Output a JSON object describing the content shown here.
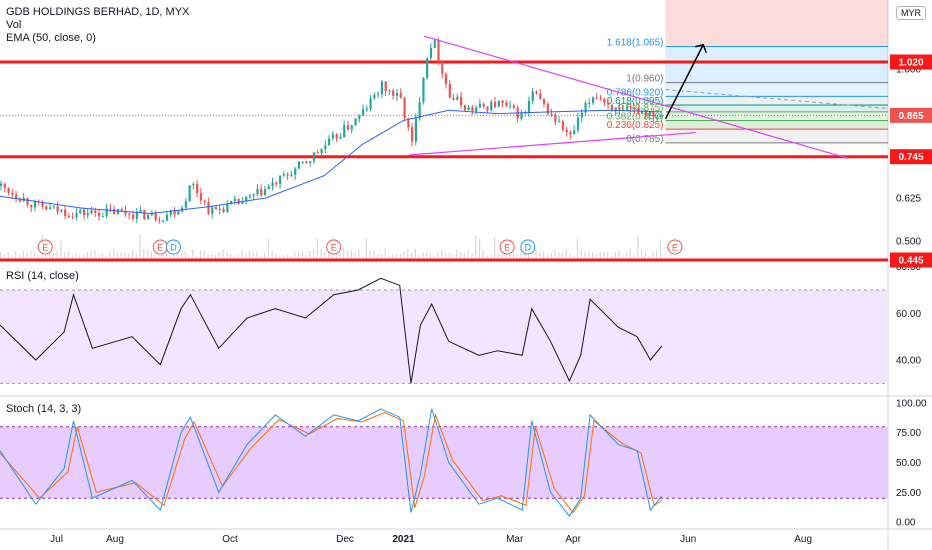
{
  "header": {
    "symbol": "GDB HOLDINGS BERHAD, 1D, MYX",
    "vol": "Vol",
    "ema": "EMA (50, close, 0)",
    "currency": "MYR"
  },
  "panes": {
    "rsi_label": "RSI (14, close)",
    "stoch_label": "Stoch (14, 3, 3)"
  },
  "colors": {
    "up": "#26a69a",
    "down": "#ef5350",
    "ema": "#2962ff",
    "level": "#f7191a",
    "triangle": "#e040fb",
    "rsi_band": "#f3e5ff",
    "stoch_band": "#e6ccff",
    "stoch_k": "#2196f3",
    "stoch_d": "#ff6d00"
  },
  "chart_data": [
    {
      "type": "candlestick",
      "title": "GDB HOLDINGS BERHAD, 1D, MYX",
      "y_ticks": [
        "1.000",
        "0.865",
        "0.745",
        "0.625",
        "0.500"
      ],
      "x_ticks": [
        "Jul",
        "Aug",
        "Oct",
        "Dec",
        "2021",
        "Mar",
        "Apr",
        "Jun",
        "Aug"
      ],
      "ylim": [
        0.445,
        1.2
      ],
      "horizontal_levels": [
        {
          "label": "1.020",
          "value": 1.02
        },
        {
          "label": "0.745",
          "value": 0.745
        },
        {
          "label": "0.445",
          "value": 0.445
        }
      ],
      "last_price": {
        "label": "0.865",
        "value": 0.865
      },
      "fib_levels": [
        {
          "label": "1.618(1.065)",
          "value": 1.065
        },
        {
          "label": "1(0.960)",
          "value": 0.96
        },
        {
          "label": "0.786(0.920)",
          "value": 0.92
        },
        {
          "label": "0.618(0.895)",
          "value": 0.895
        },
        {
          "label": "0.5(0.875)",
          "value": 0.875
        },
        {
          "label": "0.382(0.850)",
          "value": 0.85
        },
        {
          "label": "0.236(0.825)",
          "value": 0.825
        },
        {
          "label": "0(0.785)",
          "value": 0.785
        }
      ],
      "events": [
        {
          "label": "E",
          "date": "2020-06-25"
        },
        {
          "label": "E",
          "date": "2020-08-25"
        },
        {
          "label": "D",
          "date": "2020-09-01"
        },
        {
          "label": "E",
          "date": "2020-11-25"
        },
        {
          "label": "E",
          "date": "2021-02-25"
        },
        {
          "label": "D",
          "date": "2021-03-08"
        },
        {
          "label": "E",
          "date": "2021-05-25"
        }
      ],
      "series": [
        {
          "name": "Price",
          "points": [
            [
              "2020-06-01",
              0.66
            ],
            [
              "2020-06-20",
              0.6
            ],
            [
              "2020-07-10",
              0.58
            ],
            [
              "2020-08-01",
              0.585
            ],
            [
              "2020-08-25",
              0.57
            ],
            [
              "2020-09-05",
              0.6
            ],
            [
              "2020-09-10",
              0.67
            ],
            [
              "2020-09-20",
              0.585
            ],
            [
              "2020-10-10",
              0.62
            ],
            [
              "2020-10-25",
              0.67
            ],
            [
              "2020-11-10",
              0.73
            ],
            [
              "2020-11-25",
              0.8
            ],
            [
              "2020-12-08",
              0.86
            ],
            [
              "2020-12-20",
              0.95
            ],
            [
              "2020-12-30",
              0.91
            ],
            [
              "2021-01-05",
              0.78
            ],
            [
              "2021-01-12",
              1.02
            ],
            [
              "2021-01-16",
              1.09
            ],
            [
              "2021-01-25",
              0.92
            ],
            [
              "2021-02-05",
              0.88
            ],
            [
              "2021-02-20",
              0.9
            ],
            [
              "2021-03-05",
              0.86
            ],
            [
              "2021-03-10",
              0.93
            ],
            [
              "2021-03-20",
              0.865
            ],
            [
              "2021-03-30",
              0.8
            ],
            [
              "2021-04-05",
              0.87
            ],
            [
              "2021-04-12",
              0.93
            ],
            [
              "2021-04-25",
              0.87
            ],
            [
              "2021-05-05",
              0.88
            ],
            [
              "2021-05-18",
              0.865
            ]
          ]
        },
        {
          "name": "EMA (50, close, 0)",
          "points": [
            [
              "2020-06-01",
              0.63
            ],
            [
              "2020-07-15",
              0.595
            ],
            [
              "2020-08-20",
              0.58
            ],
            [
              "2020-09-20",
              0.6
            ],
            [
              "2020-10-20",
              0.625
            ],
            [
              "2020-11-20",
              0.69
            ],
            [
              "2020-12-10",
              0.78
            ],
            [
              "2021-01-01",
              0.85
            ],
            [
              "2021-01-25",
              0.88
            ],
            [
              "2021-02-20",
              0.87
            ],
            [
              "2021-03-20",
              0.875
            ],
            [
              "2021-04-20",
              0.88
            ],
            [
              "2021-05-18",
              0.875
            ]
          ]
        }
      ]
    },
    {
      "type": "line",
      "title": "RSI (14, close)",
      "y_ticks": [
        "80.00",
        "60.00",
        "40.00"
      ],
      "ylim": [
        25,
        82
      ],
      "bands": [
        30,
        70
      ],
      "series": [
        {
          "name": "RSI",
          "points": [
            [
              "2020-06-01",
              55
            ],
            [
              "2020-06-20",
              40
            ],
            [
              "2020-07-05",
              52
            ],
            [
              "2020-07-10",
              68
            ],
            [
              "2020-07-20",
              45
            ],
            [
              "2020-08-10",
              50
            ],
            [
              "2020-08-25",
              38
            ],
            [
              "2020-09-05",
              62
            ],
            [
              "2020-09-10",
              68
            ],
            [
              "2020-09-25",
              45
            ],
            [
              "2020-10-10",
              58
            ],
            [
              "2020-10-25",
              62
            ],
            [
              "2020-11-10",
              58
            ],
            [
              "2020-11-25",
              68
            ],
            [
              "2020-12-08",
              70
            ],
            [
              "2020-12-20",
              75
            ],
            [
              "2020-12-30",
              72
            ],
            [
              "2021-01-05",
              30
            ],
            [
              "2021-01-10",
              55
            ],
            [
              "2021-01-16",
              64
            ],
            [
              "2021-01-25",
              48
            ],
            [
              "2021-02-10",
              42
            ],
            [
              "2021-02-20",
              44
            ],
            [
              "2021-03-05",
              42
            ],
            [
              "2021-03-10",
              62
            ],
            [
              "2021-03-20",
              48
            ],
            [
              "2021-03-30",
              31
            ],
            [
              "2021-04-05",
              42
            ],
            [
              "2021-04-10",
              66
            ],
            [
              "2021-04-25",
              54
            ],
            [
              "2021-05-05",
              50
            ],
            [
              "2021-05-12",
              40
            ],
            [
              "2021-05-18",
              46
            ]
          ]
        }
      ]
    },
    {
      "type": "line",
      "title": "Stoch (14, 3, 3)",
      "y_ticks": [
        "100.00",
        "75.00",
        "50.00",
        "25.00",
        "0.00"
      ],
      "ylim": [
        -5,
        105
      ],
      "bands": [
        20,
        80
      ],
      "series": [
        {
          "name": "%K",
          "points": [
            [
              "2020-06-01",
              60
            ],
            [
              "2020-06-20",
              15
            ],
            [
              "2020-07-05",
              45
            ],
            [
              "2020-07-10",
              85
            ],
            [
              "2020-07-20",
              20
            ],
            [
              "2020-08-10",
              35
            ],
            [
              "2020-08-25",
              10
            ],
            [
              "2020-09-05",
              75
            ],
            [
              "2020-09-10",
              88
            ],
            [
              "2020-09-25",
              25
            ],
            [
              "2020-10-10",
              65
            ],
            [
              "2020-10-25",
              90
            ],
            [
              "2020-11-10",
              72
            ],
            [
              "2020-11-25",
              90
            ],
            [
              "2020-12-08",
              85
            ],
            [
              "2020-12-20",
              95
            ],
            [
              "2020-12-30",
              88
            ],
            [
              "2021-01-05",
              8
            ],
            [
              "2021-01-10",
              40
            ],
            [
              "2021-01-16",
              95
            ],
            [
              "2021-01-25",
              50
            ],
            [
              "2021-02-10",
              15
            ],
            [
              "2021-02-20",
              20
            ],
            [
              "2021-03-05",
              10
            ],
            [
              "2021-03-10",
              85
            ],
            [
              "2021-03-20",
              25
            ],
            [
              "2021-03-30",
              5
            ],
            [
              "2021-04-05",
              20
            ],
            [
              "2021-04-10",
              90
            ],
            [
              "2021-04-25",
              65
            ],
            [
              "2021-05-05",
              60
            ],
            [
              "2021-05-12",
              10
            ],
            [
              "2021-05-18",
              22
            ]
          ]
        },
        {
          "name": "%D",
          "points": [
            [
              "2020-06-01",
              58
            ],
            [
              "2020-06-22",
              20
            ],
            [
              "2020-07-07",
              42
            ],
            [
              "2020-07-12",
              80
            ],
            [
              "2020-07-22",
              25
            ],
            [
              "2020-08-12",
              33
            ],
            [
              "2020-08-27",
              14
            ],
            [
              "2020-09-07",
              70
            ],
            [
              "2020-09-12",
              84
            ],
            [
              "2020-09-27",
              30
            ],
            [
              "2020-10-12",
              62
            ],
            [
              "2020-10-27",
              86
            ],
            [
              "2020-11-12",
              74
            ],
            [
              "2020-11-27",
              87
            ],
            [
              "2020-12-10",
              84
            ],
            [
              "2020-12-22",
              92
            ],
            [
              "2021-01-01",
              85
            ],
            [
              "2021-01-07",
              12
            ],
            [
              "2021-01-12",
              38
            ],
            [
              "2021-01-18",
              90
            ],
            [
              "2021-01-27",
              52
            ],
            [
              "2021-02-12",
              18
            ],
            [
              "2021-02-22",
              22
            ],
            [
              "2021-03-07",
              14
            ],
            [
              "2021-03-12",
              80
            ],
            [
              "2021-03-22",
              28
            ],
            [
              "2021-04-01",
              8
            ],
            [
              "2021-04-07",
              22
            ],
            [
              "2021-04-12",
              85
            ],
            [
              "2021-04-27",
              66
            ],
            [
              "2021-05-07",
              58
            ],
            [
              "2021-05-14",
              14
            ],
            [
              "2021-05-18",
              18
            ]
          ]
        }
      ]
    }
  ]
}
